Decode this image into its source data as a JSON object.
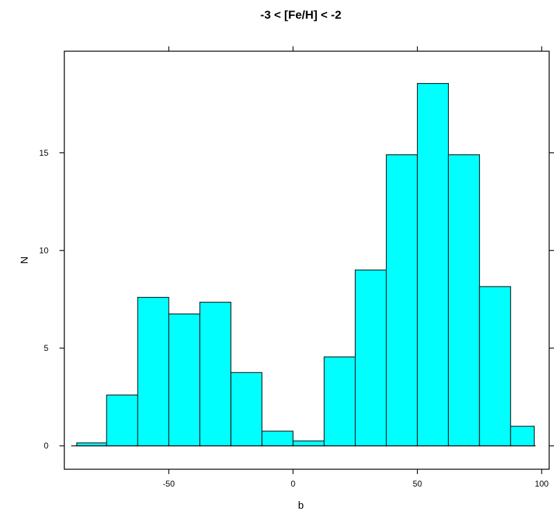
{
  "chart_data": {
    "type": "bar",
    "title": "-3 < [Fe/H] < -2",
    "xlabel": "b",
    "ylabel": "N",
    "xlim": [
      -92,
      103
    ],
    "ylim": [
      -1.2,
      20.2
    ],
    "xticks": [
      -50,
      0,
      50,
      100
    ],
    "xtick_labels": [
      "-50",
      "0",
      "50",
      "100"
    ],
    "yticks": [
      0,
      5,
      10,
      15
    ],
    "ytick_labels": [
      "0",
      "5",
      "10",
      "15"
    ],
    "bin_edges": [
      -87,
      -75,
      -62.5,
      -50,
      -37.5,
      -25,
      -12.5,
      0,
      12.5,
      25,
      37.5,
      50,
      62.5,
      75,
      87.5,
      97
    ],
    "values": [
      0.15,
      2.6,
      7.6,
      6.75,
      7.35,
      3.75,
      0.75,
      0.25,
      4.55,
      9.0,
      14.9,
      18.55,
      14.9,
      8.15,
      1.0
    ],
    "grid": false,
    "bar_color": "#00ffff"
  }
}
